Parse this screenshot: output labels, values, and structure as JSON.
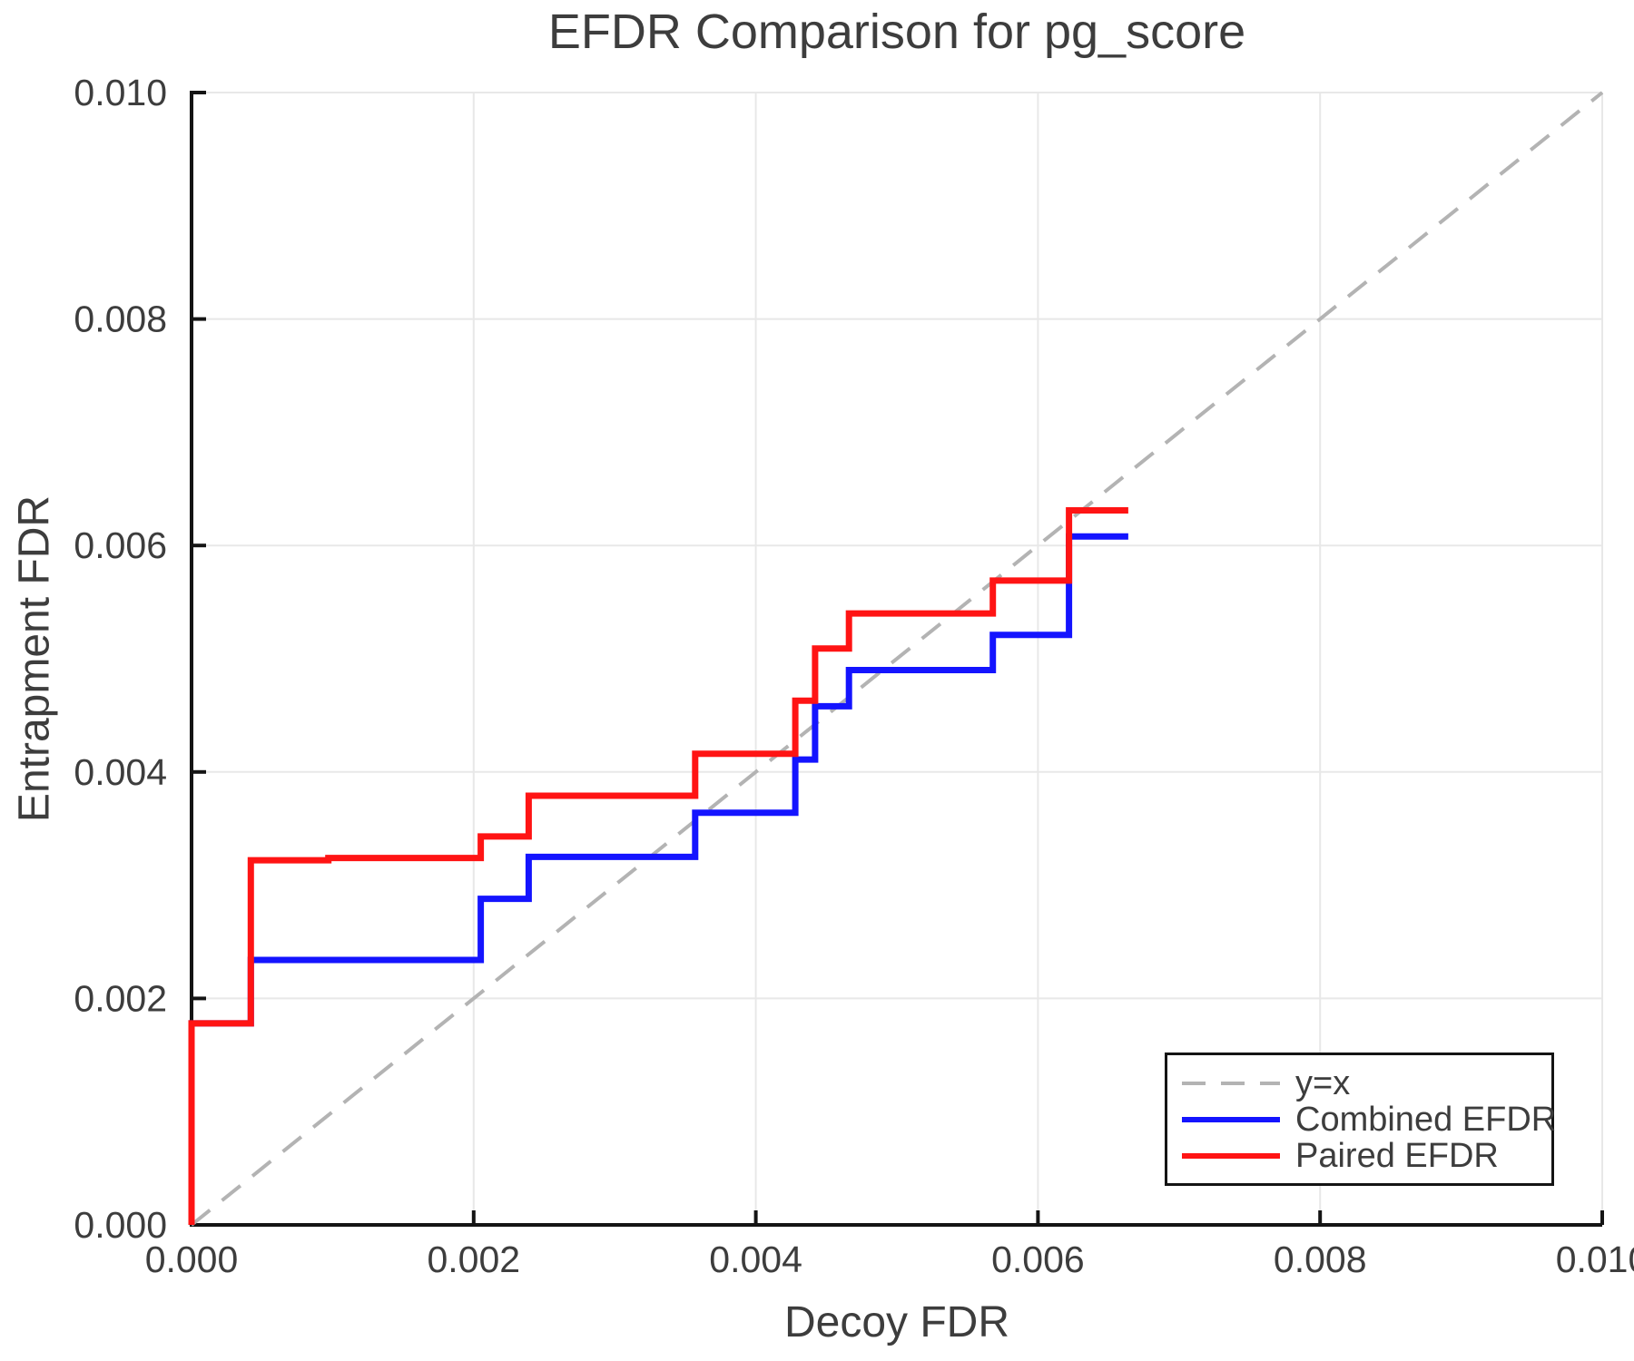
{
  "chart_data": {
    "type": "line",
    "title": "EFDR Comparison for pg_score",
    "xlabel": "Decoy FDR",
    "ylabel": "Entrapment FDR",
    "xlim": [
      0.0,
      0.01
    ],
    "ylim": [
      0.0,
      0.01
    ],
    "x_ticks": [
      0.0,
      0.002,
      0.004,
      0.006,
      0.008,
      0.01
    ],
    "x_tick_labels": [
      "0.000",
      "0.002",
      "0.004",
      "0.006",
      "0.008",
      "0.010"
    ],
    "y_ticks": [
      0.0,
      0.002,
      0.004,
      0.006,
      0.008,
      0.01
    ],
    "y_tick_labels": [
      "0.000",
      "0.002",
      "0.004",
      "0.006",
      "0.008",
      "0.010"
    ],
    "grid": true,
    "legend_position": "lower right",
    "colors": {
      "text": "#3d3d3d",
      "grid": "#e8e8e8",
      "spine": "#141414",
      "background": "#ffffff"
    },
    "series": [
      {
        "name": "y=x",
        "color": "#b3b3b3",
        "line_style": "dashed",
        "step": false,
        "points": [
          [
            0.0,
            0.0
          ],
          [
            0.01,
            0.01
          ]
        ]
      },
      {
        "name": "Combined EFDR",
        "color": "#1414ff",
        "line_style": "solid",
        "step": true,
        "points": [
          [
            0.0,
            0.0
          ],
          [
            0.0,
            0.00178
          ],
          [
            0.00042,
            0.00178
          ],
          [
            0.00042,
            0.00234
          ],
          [
            0.00205,
            0.00234
          ],
          [
            0.00205,
            0.00288
          ],
          [
            0.00239,
            0.00288
          ],
          [
            0.00239,
            0.00325
          ],
          [
            0.00357,
            0.00325
          ],
          [
            0.00357,
            0.00364
          ],
          [
            0.00428,
            0.00364
          ],
          [
            0.00428,
            0.00411
          ],
          [
            0.00442,
            0.00411
          ],
          [
            0.00442,
            0.00458
          ],
          [
            0.00466,
            0.00458
          ],
          [
            0.00466,
            0.0049
          ],
          [
            0.00568,
            0.0049
          ],
          [
            0.00568,
            0.00521
          ],
          [
            0.00622,
            0.00521
          ],
          [
            0.00622,
            0.00608
          ],
          [
            0.00664,
            0.00608
          ]
        ]
      },
      {
        "name": "Paired EFDR",
        "color": "#ff1414",
        "line_style": "solid",
        "step": true,
        "points": [
          [
            0.0,
            0.0
          ],
          [
            0.0,
            0.00178
          ],
          [
            0.00042,
            0.00178
          ],
          [
            0.00042,
            0.00322
          ],
          [
            0.00097,
            0.00322
          ],
          [
            0.00097,
            0.00324
          ],
          [
            0.00205,
            0.00324
          ],
          [
            0.00205,
            0.00343
          ],
          [
            0.00239,
            0.00343
          ],
          [
            0.00239,
            0.00379
          ],
          [
            0.00357,
            0.00379
          ],
          [
            0.00357,
            0.00416
          ],
          [
            0.00428,
            0.00416
          ],
          [
            0.00428,
            0.00463
          ],
          [
            0.00442,
            0.00463
          ],
          [
            0.00442,
            0.00509
          ],
          [
            0.00466,
            0.00509
          ],
          [
            0.00466,
            0.0054
          ],
          [
            0.00568,
            0.0054
          ],
          [
            0.00568,
            0.00569
          ],
          [
            0.00622,
            0.00569
          ],
          [
            0.00622,
            0.00631
          ],
          [
            0.00664,
            0.00631
          ]
        ]
      }
    ]
  }
}
